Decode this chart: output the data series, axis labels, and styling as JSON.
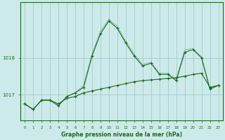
{
  "title": "Graphe pression niveau de la mer (hPa)",
  "background_color": "#cdeaea",
  "grid_color": "#aacfcf",
  "line_color": "#1a6b1a",
  "xlim": [
    -0.5,
    23.5
  ],
  "ylim": [
    1016.3,
    1019.5
  ],
  "yticks": [
    1017,
    1018
  ],
  "xticks": [
    0,
    1,
    2,
    3,
    4,
    5,
    6,
    7,
    8,
    9,
    10,
    11,
    12,
    13,
    14,
    15,
    16,
    17,
    18,
    19,
    20,
    21,
    22,
    23
  ],
  "s_flat": [
    1016.75,
    1016.6,
    1016.85,
    1016.85,
    1016.75,
    1016.9,
    1016.95,
    1017.05,
    1017.1,
    1017.15,
    1017.2,
    1017.25,
    1017.3,
    1017.35,
    1017.38,
    1017.4,
    1017.42,
    1017.44,
    1017.46,
    1017.5,
    1017.55,
    1017.58,
    1017.2,
    1017.25
  ],
  "s_main": [
    1016.75,
    1016.6,
    1016.85,
    1016.85,
    1016.7,
    1016.95,
    1017.05,
    1017.2,
    1018.05,
    1018.65,
    1019.0,
    1018.8,
    1018.4,
    1018.05,
    1017.78,
    1017.85,
    1017.55,
    1017.55,
    1017.38,
    1018.15,
    1018.22,
    1018.0,
    1017.15,
    1017.25
  ],
  "s_dot": [
    1016.75,
    1016.6,
    1016.85,
    1016.85,
    1016.7,
    1016.95,
    1017.05,
    1017.25,
    1018.1,
    1018.72,
    1019.05,
    1018.85,
    1018.45,
    1018.1,
    1017.82,
    1017.88,
    1017.58,
    1017.58,
    1017.42,
    1018.22,
    1018.25,
    1018.02,
    1017.18,
    1017.25
  ]
}
